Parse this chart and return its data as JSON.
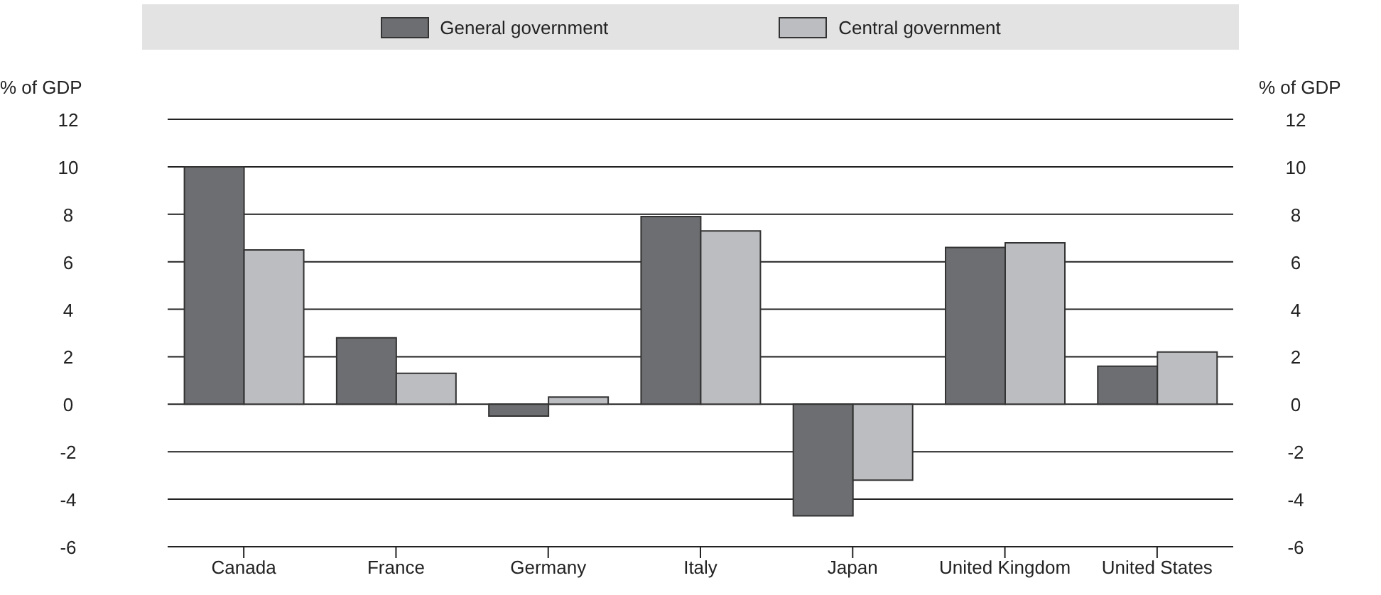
{
  "chart_data": {
    "type": "bar",
    "categories": [
      "Canada",
      "France",
      "Germany",
      "Italy",
      "Japan",
      "United Kingdom",
      "United States"
    ],
    "series": [
      {
        "name": "General government",
        "color": "#6d6e71",
        "values": [
          10.0,
          2.8,
          -0.5,
          7.9,
          -4.7,
          6.6,
          1.6
        ]
      },
      {
        "name": "Central government",
        "color": "#bcbdc0",
        "values": [
          6.5,
          1.3,
          0.3,
          7.3,
          -3.2,
          6.8,
          2.2
        ]
      }
    ],
    "ylabel": "% of GDP",
    "y2label": "% of GDP",
    "ylim": [
      -6,
      12
    ],
    "yticks": [
      -6,
      -4,
      -2,
      0,
      2,
      4,
      6,
      8,
      10,
      12
    ],
    "y2lim": [
      -6,
      12
    ],
    "y2ticks": [
      -6,
      -4,
      -2,
      0,
      2,
      4,
      6,
      8,
      10,
      12
    ],
    "grid": "y",
    "legend": "top"
  }
}
